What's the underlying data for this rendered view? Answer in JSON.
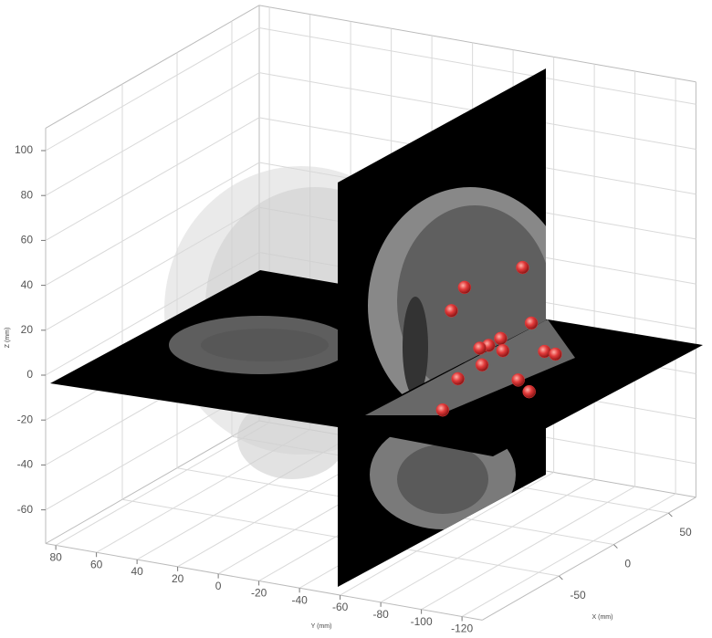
{
  "chart_data": {
    "type": "scatter3d",
    "xlabel": "X (mm)",
    "ylabel": "Y (mm)",
    "zlabel": "Z (mm)",
    "x": [
      28,
      -25,
      -37,
      36,
      8,
      -3,
      -11,
      10,
      48,
      58,
      -9,
      -31,
      24,
      34,
      -45
    ],
    "y": [
      -70,
      -70,
      -70,
      -70,
      -70,
      -70,
      -70,
      -70,
      -70,
      -70,
      -70,
      -70,
      -70,
      -70,
      -70
    ],
    "z": [
      31,
      37,
      30,
      4,
      5,
      5,
      6,
      -1,
      -12,
      -16,
      -2,
      -2,
      -18,
      -26,
      -12
    ],
    "color": "#e23a3a",
    "xlim": [
      -120,
      75
    ],
    "ylim": [
      -130,
      85
    ],
    "zlim": [
      -75,
      110
    ],
    "xticks": [
      -50,
      0,
      50
    ],
    "yticks": [
      80,
      60,
      40,
      20,
      0,
      -20,
      -40,
      -60,
      -80,
      -100,
      -120
    ],
    "zticks": [
      -60,
      -40,
      -20,
      0,
      20,
      40,
      60,
      80,
      100
    ],
    "grid": true
  }
}
